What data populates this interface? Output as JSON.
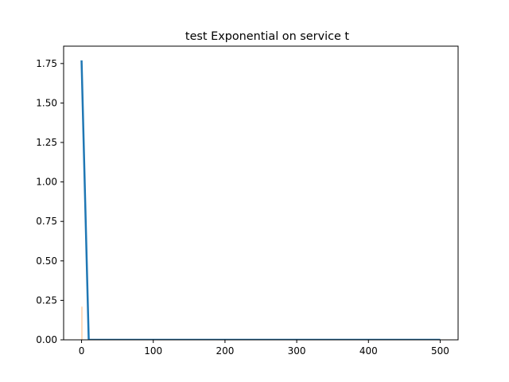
{
  "chart_data": {
    "type": "line",
    "title": "test Exponential on service t",
    "xlabel": "",
    "ylabel": "",
    "xlim": [
      -25,
      525
    ],
    "ylim": [
      0,
      1.86
    ],
    "xticks": [
      0,
      100,
      200,
      300,
      400,
      500
    ],
    "xtick_labels": [
      "0",
      "100",
      "200",
      "300",
      "400",
      "500"
    ],
    "yticks": [
      0,
      0.25,
      0.5,
      0.75,
      1.0,
      1.25,
      1.5,
      1.75
    ],
    "ytick_labels": [
      "0.00",
      "0.25",
      "0.50",
      "0.75",
      "1.00",
      "1.25",
      "1.50",
      "1.75"
    ],
    "grid": false,
    "series": [
      {
        "color": "#1f77b4",
        "style": "line",
        "x": [
          0,
          10,
          500
        ],
        "y": [
          1.77,
          0.0,
          0.0
        ]
      },
      {
        "color": "#ff7f0e",
        "style": "histogram",
        "bars": [
          {
            "x0": 0.0,
            "x1": 1.0,
            "height": 0.21
          }
        ]
      }
    ]
  }
}
